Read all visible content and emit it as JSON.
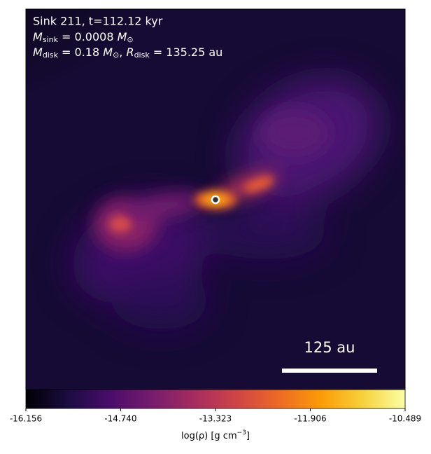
{
  "chart_data": {
    "type": "image",
    "annotations": [
      {
        "text": "Sink 211, t=112.12 kyr"
      },
      {
        "symbol": "M",
        "subscript": "sink",
        "rest": " = 0.0008 ",
        "unit": "M",
        "unit_subscript": "⊙"
      },
      {
        "symbol": "M",
        "subscript": "disk",
        "rest": " = 0.18 ",
        "unit": "M",
        "unit_subscript": "⊙",
        "sep": ", ",
        "symbol2": "R",
        "subscript2": "disk",
        "rest2": " = 135.25 au"
      }
    ],
    "scale_bar": {
      "label": "125 au",
      "color": "#ffffff"
    },
    "sink_marker": {
      "color": "#ffffff"
    },
    "colormap": [
      "#000004",
      "#1b0c41",
      "#4a0c6b",
      "#781c6d",
      "#a52c60",
      "#cf4446",
      "#ed6925",
      "#fb9b06",
      "#f7d13d",
      "#fcffa4"
    ],
    "colorbar": {
      "label": {
        "text": "log(ρ) [g cm",
        "superscript": "−3",
        "end": "]"
      },
      "lim": [
        -16.156,
        -10.489
      ],
      "ticks": [
        -16.156,
        {
          "value": -14.74,
          "label": "-14.740"
        },
        -13.323,
        -11.906,
        -10.489
      ]
    }
  }
}
